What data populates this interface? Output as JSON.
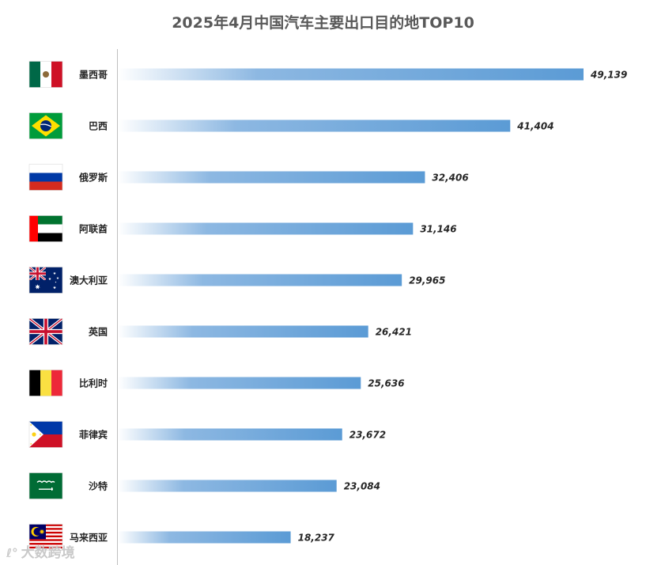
{
  "chart_data": {
    "type": "bar",
    "orientation": "horizontal",
    "title": "2025年4月中国汽车主要出口目的地TOP10",
    "xlabel": "",
    "ylabel": "",
    "categories": [
      "墨西哥",
      "巴西",
      "俄罗斯",
      "阿联酋",
      "澳大利亚",
      "英国",
      "比利时",
      "菲律宾",
      "沙特",
      "马来西亚"
    ],
    "values": [
      49139,
      41404,
      32406,
      31146,
      29965,
      26421,
      25636,
      23672,
      23084,
      18237
    ],
    "value_labels": [
      "49,139",
      "41,404",
      "32,406",
      "31,146",
      "29,965",
      "26,421",
      "25,636",
      "23,672",
      "23,084",
      "18,237"
    ],
    "flags": [
      "mexico-flag-icon",
      "brazil-flag-icon",
      "russia-flag-icon",
      "uae-flag-icon",
      "australia-flag-icon",
      "uk-flag-icon",
      "belgium-flag-icon",
      "philippines-flag-icon",
      "saudi-arabia-flag-icon",
      "malaysia-flag-icon"
    ],
    "xlim": [
      0,
      49139
    ],
    "grid": false,
    "legend": "none",
    "bar_gradient": [
      "#ffffff",
      "#5b9bd5"
    ]
  },
  "watermark": {
    "text": "大数跨境"
  }
}
